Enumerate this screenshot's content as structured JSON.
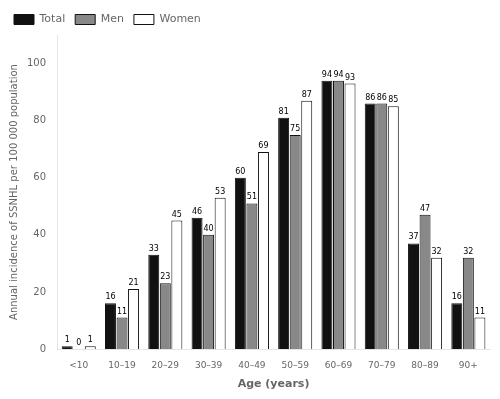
{
  "chart_data": {
    "type": "bar",
    "categories": [
      "<10",
      "10–19",
      "20–29",
      "30–39",
      "40–49",
      "50–59",
      "60–69",
      "70–79",
      "80–89",
      "90+"
    ],
    "series": [
      {
        "name": "Total",
        "color": "#111111",
        "values": [
          1,
          16,
          33,
          46,
          60,
          81,
          94,
          86,
          37,
          16
        ]
      },
      {
        "name": "Men",
        "color": "#888888",
        "values": [
          0,
          11,
          23,
          40,
          51,
          75,
          94,
          86,
          47,
          32
        ]
      },
      {
        "name": "Women",
        "color": "#ffffff",
        "values": [
          1,
          21,
          45,
          53,
          69,
          87,
          93,
          85,
          32,
          11
        ]
      }
    ],
    "xlabel": "Age (years)",
    "ylabel": "Annual incidence of SSNHL per 100 000 population",
    "ylim": [
      0,
      110
    ],
    "yticks": [
      0,
      20,
      40,
      60,
      80,
      100
    ],
    "grid": false,
    "legend": "upper left",
    "data_labels": true
  }
}
